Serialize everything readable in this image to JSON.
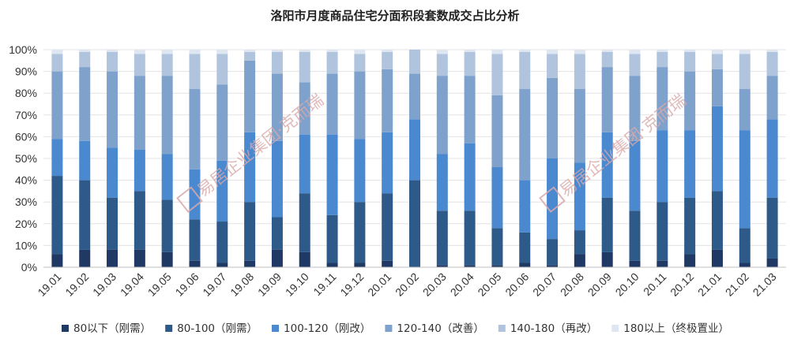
{
  "chart_data": {
    "type": "bar",
    "stacked": true,
    "title": "洛阳市月度商品住宅分面积段套数成交占比分析",
    "categories": [
      "19.01",
      "19.02",
      "19.03",
      "19.04",
      "19.05",
      "19.06",
      "19.07",
      "19.08",
      "19.09",
      "19.10",
      "19.11",
      "19.12",
      "20.01",
      "20.02",
      "20.03",
      "20.04",
      "20.05",
      "20.06",
      "20.07",
      "20.08",
      "20.09",
      "20.10",
      "20.11",
      "20.12",
      "21.01",
      "21.02",
      "21.03"
    ],
    "y_ticks": [
      "0%",
      "10%",
      "20%",
      "30%",
      "40%",
      "50%",
      "60%",
      "70%",
      "80%",
      "90%",
      "100%"
    ],
    "ylim": [
      0,
      100
    ],
    "grid": true,
    "legend_position": "bottom",
    "series": [
      {
        "name": "80以下（刚需）",
        "color": "#203864",
        "values": [
          6,
          8,
          8,
          8,
          7,
          3,
          2,
          3,
          8,
          7,
          2,
          2,
          3,
          0,
          1,
          1,
          1,
          2,
          1,
          6,
          7,
          3,
          3,
          6,
          8,
          2,
          4
        ]
      },
      {
        "name": "80-100（刚需）",
        "color": "#2e5a8a",
        "values": [
          36,
          32,
          24,
          27,
          24,
          19,
          19,
          27,
          15,
          27,
          22,
          28,
          31,
          40,
          25,
          25,
          17,
          14,
          12,
          11,
          25,
          23,
          27,
          26,
          27,
          16,
          28
        ]
      },
      {
        "name": "100-120（刚改）",
        "color": "#4a88cf",
        "values": [
          17,
          18,
          23,
          19,
          21,
          23,
          28,
          32,
          35,
          27,
          37,
          29,
          28,
          28,
          26,
          31,
          28,
          24,
          37,
          31,
          30,
          32,
          33,
          31,
          39,
          45,
          36
        ]
      },
      {
        "name": "120-140（改善）",
        "color": "#7fa2cc",
        "values": [
          31,
          34,
          35,
          34,
          36,
          37,
          35,
          33,
          31,
          24,
          28,
          31,
          29,
          21,
          36,
          31,
          33,
          42,
          37,
          34,
          30,
          30,
          29,
          27,
          17,
          19,
          20
        ]
      },
      {
        "name": "140-180（再改）",
        "color": "#b0c4de",
        "values": [
          8,
          7,
          9,
          10,
          10,
          16,
          14,
          4,
          10,
          14,
          10,
          8,
          8,
          11,
          10,
          11,
          19,
          17,
          11,
          16,
          7,
          10,
          7,
          9,
          7,
          16,
          11
        ]
      },
      {
        "name": "180以上（终极置业）",
        "color": "#dde6f1",
        "values": [
          2,
          1,
          1,
          2,
          2,
          2,
          2,
          1,
          1,
          1,
          1,
          2,
          1,
          0,
          2,
          1,
          2,
          1,
          2,
          2,
          1,
          2,
          1,
          1,
          2,
          2,
          1
        ]
      }
    ]
  },
  "watermark": "易居企业集团·克而瑞"
}
